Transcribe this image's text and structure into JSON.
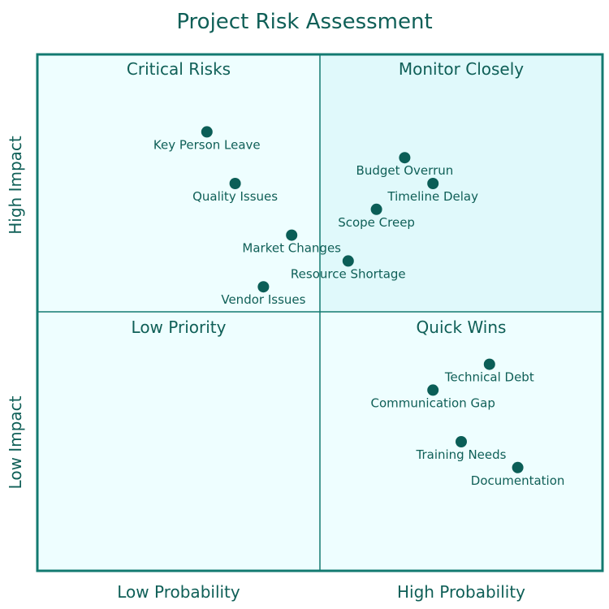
{
  "chart_data": {
    "type": "scatter",
    "title": "Project Risk Assessment",
    "xlabel_low": "Low Probability",
    "xlabel_high": "High Probability",
    "ylabel_low": "Low Impact",
    "ylabel_high": "High Impact",
    "xlim": [
      0,
      1
    ],
    "ylim": [
      0,
      1
    ],
    "quadrants": {
      "top_left": "Critical Risks",
      "top_right": "Monitor Closely",
      "bottom_left": "Low Priority",
      "bottom_right": "Quick Wins"
    },
    "points": [
      {
        "label": "Key Person Leave",
        "x": 0.3,
        "y": 0.85
      },
      {
        "label": "Quality Issues",
        "x": 0.35,
        "y": 0.75
      },
      {
        "label": "Budget Overrun",
        "x": 0.65,
        "y": 0.8
      },
      {
        "label": "Timeline Delay",
        "x": 0.7,
        "y": 0.75
      },
      {
        "label": "Scope Creep",
        "x": 0.6,
        "y": 0.7
      },
      {
        "label": "Market Changes",
        "x": 0.45,
        "y": 0.65
      },
      {
        "label": "Resource Shortage",
        "x": 0.55,
        "y": 0.6
      },
      {
        "label": "Vendor Issues",
        "x": 0.4,
        "y": 0.55
      },
      {
        "label": "Technical Debt",
        "x": 0.8,
        "y": 0.4
      },
      {
        "label": "Communication Gap",
        "x": 0.7,
        "y": 0.35
      },
      {
        "label": "Training Needs",
        "x": 0.75,
        "y": 0.25
      },
      {
        "label": "Documentation",
        "x": 0.85,
        "y": 0.2
      }
    ],
    "colors": {
      "point": "#0b5e57",
      "border": "#137a70",
      "quadrant_fill": "#eefeff",
      "highlight_fill": "#e0f9fb",
      "text": "#0f5f57"
    }
  }
}
